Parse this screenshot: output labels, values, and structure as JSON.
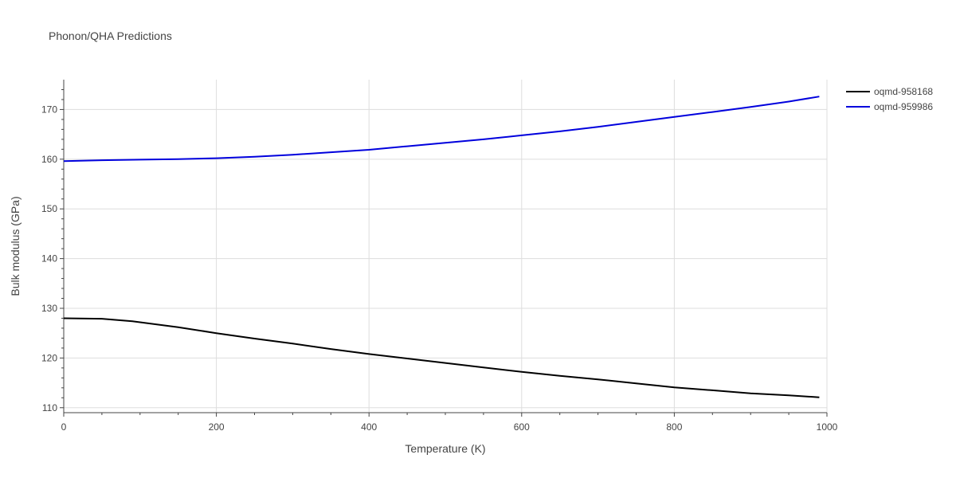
{
  "chart_data": {
    "type": "line",
    "title": "Phonon/QHA Predictions",
    "xlabel": "Temperature (K)",
    "ylabel": "Bulk modulus (GPa)",
    "xlim": [
      0,
      1000
    ],
    "ylim": [
      109,
      176
    ],
    "x_ticks": [
      0,
      200,
      400,
      600,
      800,
      1000
    ],
    "y_ticks": [
      110,
      120,
      130,
      140,
      150,
      160,
      170
    ],
    "grid": true,
    "legend_position": "top-right",
    "series": [
      {
        "name": "oqmd-958168",
        "color": "#000000",
        "x": [
          0,
          50,
          90,
          150,
          200,
          250,
          300,
          350,
          400,
          450,
          500,
          550,
          600,
          650,
          700,
          750,
          800,
          850,
          900,
          950,
          990
        ],
        "y": [
          128.0,
          127.9,
          127.4,
          126.2,
          125.0,
          123.9,
          122.9,
          121.8,
          120.8,
          119.9,
          119.0,
          118.1,
          117.2,
          116.4,
          115.7,
          114.9,
          114.1,
          113.5,
          112.9,
          112.5,
          112.1
        ]
      },
      {
        "name": "oqmd-959986",
        "color": "#0000dd",
        "x": [
          0,
          50,
          100,
          150,
          200,
          250,
          300,
          350,
          400,
          450,
          500,
          550,
          600,
          650,
          700,
          750,
          800,
          850,
          900,
          950,
          990
        ],
        "y": [
          159.6,
          159.8,
          159.9,
          160.0,
          160.2,
          160.5,
          160.9,
          161.4,
          161.9,
          162.6,
          163.3,
          164.0,
          164.8,
          165.6,
          166.5,
          167.5,
          168.5,
          169.5,
          170.5,
          171.6,
          172.6
        ]
      }
    ]
  }
}
